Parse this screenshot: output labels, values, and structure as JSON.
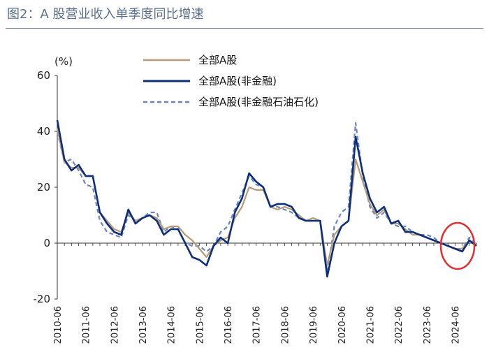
{
  "title": "图2：A 股营业收入单季度同比增速",
  "chart_data": {
    "type": "line",
    "title": "图2：A 股营业收入单季度同比增速",
    "ylabel": "(%)",
    "xlabel": "",
    "ylim": [
      -20,
      60
    ],
    "yticks": [
      "60",
      "40",
      "20",
      "0",
      "-20"
    ],
    "ytick_values": [
      60,
      40,
      20,
      0,
      -20
    ],
    "xtick_labels": [
      "2010-06",
      "2011-06",
      "2012-06",
      "2013-06",
      "2014-06",
      "2015-06",
      "2016-06",
      "2017-06",
      "2018-06",
      "2019-06",
      "2020-06",
      "2021-06",
      "2022-06",
      "2023-06",
      "2024-06"
    ],
    "x_start": "2010-06",
    "x_end": "2024-12",
    "grid": false,
    "legend_position": "top-center",
    "annotation": "red circle highlighting 2024 values",
    "series": [
      {
        "name": "全部A股",
        "color": "#b59b77",
        "style": "solid",
        "values": [
          41,
          29,
          27,
          27,
          24,
          24,
          11,
          8,
          5,
          4,
          11,
          8,
          9,
          10,
          9,
          5,
          6,
          6,
          3,
          1,
          -2,
          -5,
          -1,
          1,
          2,
          9,
          13,
          20,
          19,
          19,
          13,
          12,
          13,
          12,
          10,
          8,
          9,
          8,
          -8,
          3,
          6,
          8,
          30,
          22,
          14,
          10,
          12,
          7,
          7,
          5,
          3,
          3,
          2,
          1,
          0,
          -1,
          -2,
          -2,
          1,
          -1
        ]
      },
      {
        "name": "全部A股(非金融)",
        "color": "#0d2e7a",
        "style": "solid",
        "values": [
          44,
          30,
          26,
          28,
          24,
          24,
          11,
          7,
          4,
          3,
          12,
          7,
          9,
          10,
          8,
          3,
          5,
          5,
          0,
          -5,
          -6,
          -8,
          -1,
          2,
          0,
          11,
          16,
          25,
          22,
          20,
          13,
          14,
          14,
          13,
          9,
          8,
          8,
          8,
          -12,
          0,
          6,
          8,
          38,
          25,
          16,
          11,
          13,
          7,
          8,
          4,
          4,
          3,
          2,
          1,
          0,
          -1,
          -2,
          -3,
          1,
          -1
        ]
      },
      {
        "name": "全部A股(非金融石油石化)",
        "color": "#6a86c2",
        "style": "dashed",
        "values": [
          40,
          29,
          30,
          26,
          21,
          20,
          8,
          4,
          3,
          2,
          10,
          8,
          9,
          11,
          11,
          4,
          6,
          5,
          0,
          -1,
          -1,
          -3,
          -1,
          4,
          6,
          12,
          18,
          24,
          21,
          20,
          13,
          13,
          12,
          11,
          9,
          8,
          8,
          8,
          -10,
          6,
          11,
          13,
          43,
          24,
          13,
          9,
          11,
          7,
          6,
          6,
          4,
          3,
          3,
          2,
          0,
          -1,
          -2,
          -2,
          2,
          -1
        ]
      }
    ]
  },
  "colors": {
    "axis": "#333333",
    "negative_tick": "#c8302b",
    "highlight_circle": "#e03030",
    "title_text": "#5a6f8a"
  }
}
